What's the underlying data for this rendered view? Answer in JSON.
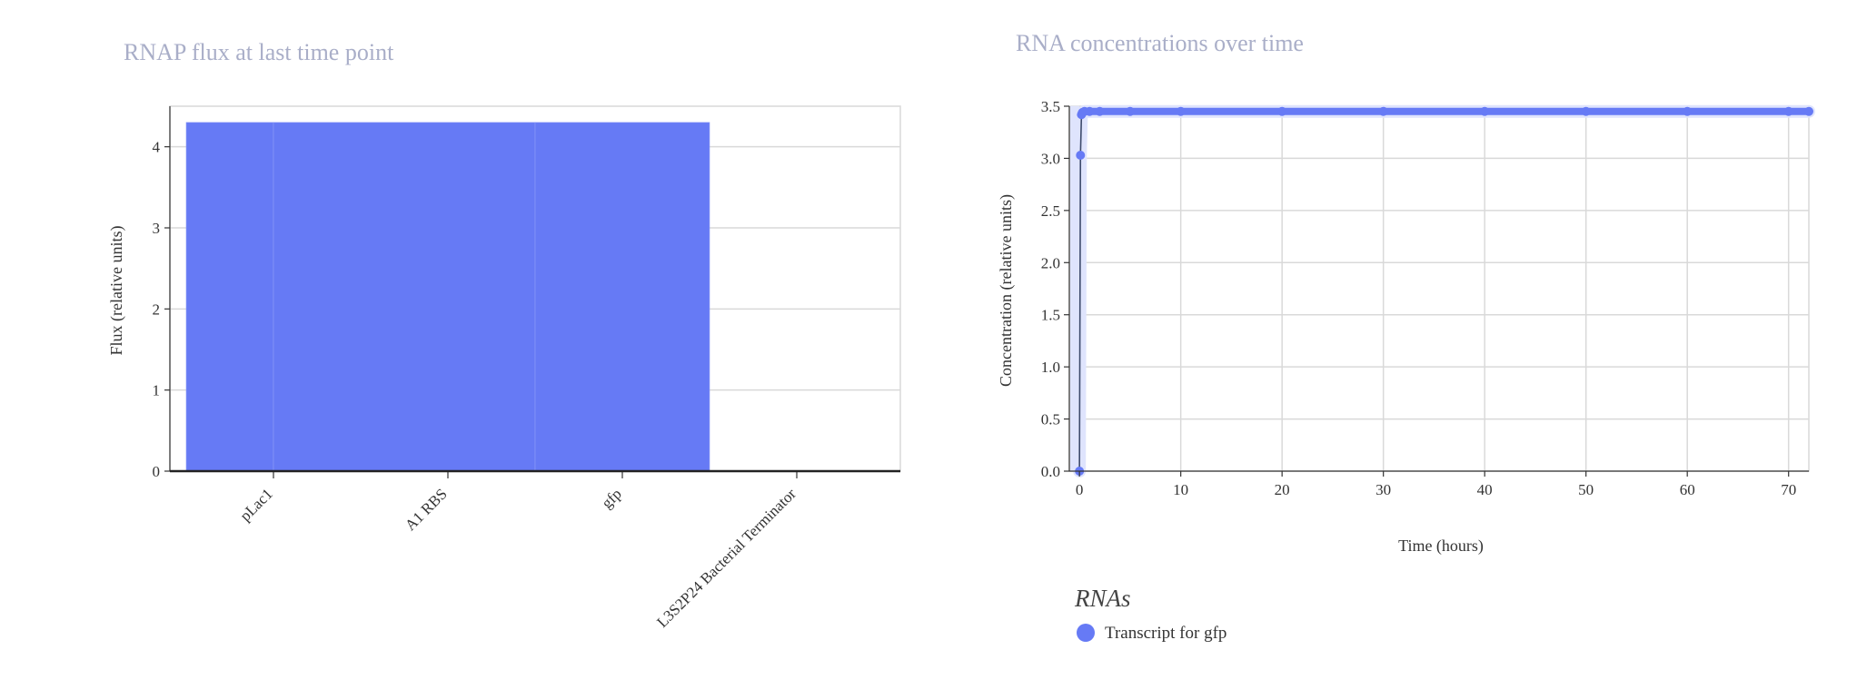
{
  "chart_data": [
    {
      "type": "bar",
      "title": "RNAP flux at last time point",
      "xlabel": "",
      "ylabel": "Flux (relative units)",
      "categories": [
        "pLac1",
        "A1 RBS",
        "gfp",
        "L3S2P24 Bacterial Terminator"
      ],
      "values": [
        4.3,
        4.3,
        4.3,
        0
      ],
      "yticks": [
        0,
        1,
        2,
        3,
        4
      ],
      "ylim": [
        0,
        4.5
      ],
      "grid": true,
      "color": "#667af5"
    },
    {
      "type": "line",
      "title": "RNA concentrations over time",
      "xlabel": "Time (hours)",
      "ylabel": "Concentration (relative units)",
      "xticks": [
        0,
        10,
        20,
        30,
        40,
        50,
        60,
        70
      ],
      "yticks": [
        "0.0",
        "0.5",
        "1.0",
        "1.5",
        "2.0",
        "2.5",
        "3.0",
        "3.5"
      ],
      "xlim": [
        -1,
        72
      ],
      "ylim": [
        0,
        3.5
      ],
      "grid": true,
      "legend_title": "RNAs",
      "legend_position": "bottom-left",
      "series": [
        {
          "name": "Transcript for gfp",
          "color": "#667af5",
          "x": [
            0,
            0.1,
            0.2,
            0.3,
            0.5,
            1,
            2,
            5,
            10,
            20,
            30,
            40,
            50,
            60,
            70,
            72
          ],
          "values": [
            0,
            3.03,
            3.42,
            3.44,
            3.45,
            3.45,
            3.45,
            3.45,
            3.45,
            3.45,
            3.45,
            3.45,
            3.45,
            3.45,
            3.45,
            3.45
          ]
        }
      ]
    }
  ]
}
